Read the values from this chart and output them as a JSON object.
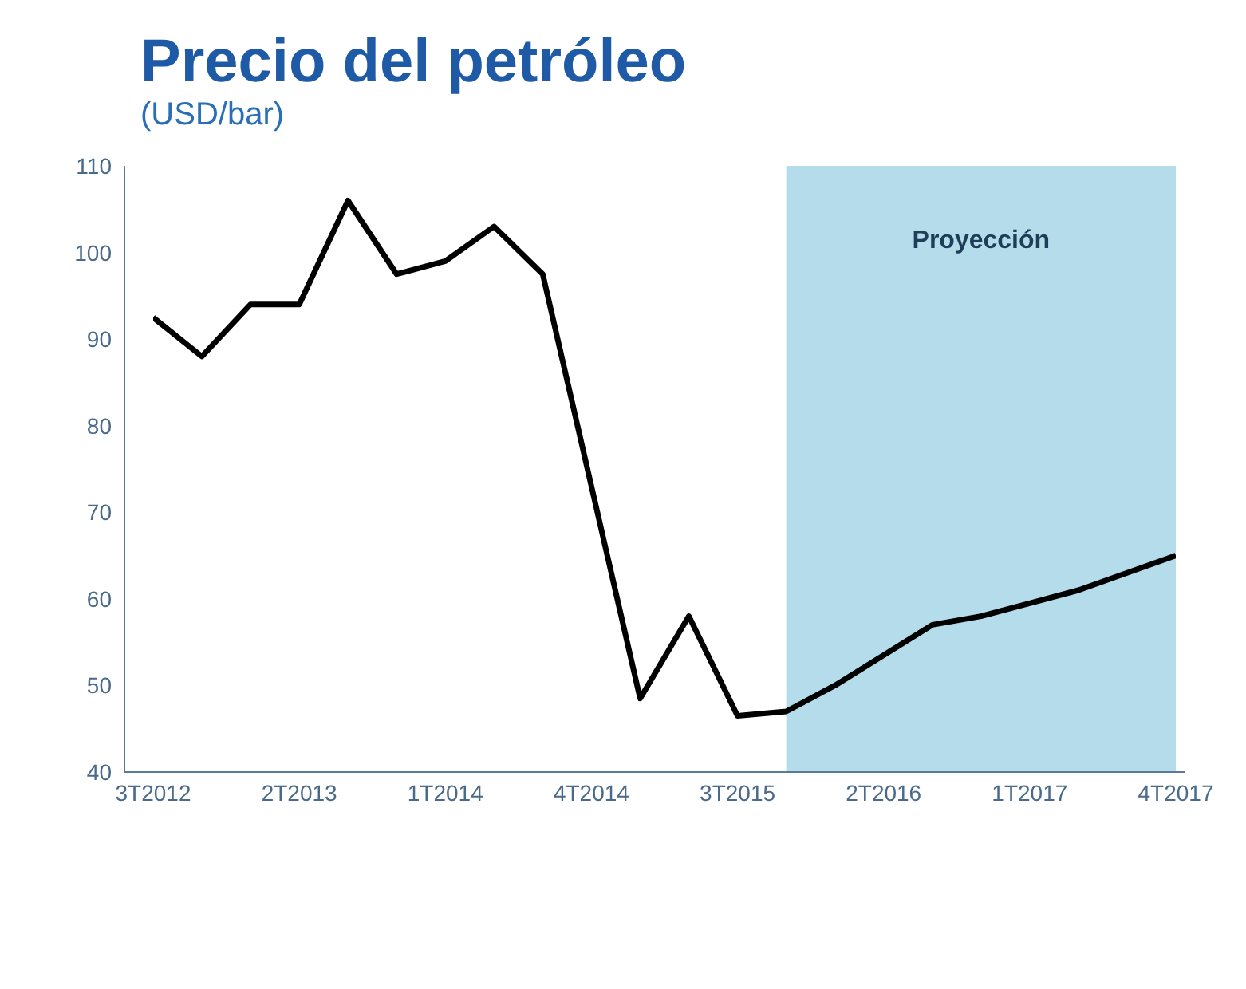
{
  "chart_data": {
    "type": "line",
    "title": "Precio del petróleo",
    "subtitle": "(USD/bar)",
    "categories": [
      "3T2012",
      null,
      null,
      "2T2013",
      null,
      null,
      "1T2014",
      null,
      null,
      "4T2014",
      null,
      null,
      "3T2015",
      null,
      null,
      "2T2016",
      null,
      null,
      "1T2017",
      null,
      null,
      "4T2017"
    ],
    "series": [
      {
        "color": "#000000",
        "values": [
          92.5,
          88,
          94,
          94,
          106,
          97.5,
          99,
          103,
          97.5,
          73,
          48.5,
          58,
          46.5,
          47,
          50,
          53.5,
          57,
          58,
          59.5,
          61,
          63,
          65
        ]
      }
    ],
    "ylim": [
      40,
      110
    ],
    "yticks": [
      40,
      50,
      60,
      70,
      80,
      90,
      100,
      110
    ],
    "annotations": [
      "Proyección"
    ],
    "grid": false,
    "legend": false,
    "marker": "none",
    "line_style": "solid"
  }
}
